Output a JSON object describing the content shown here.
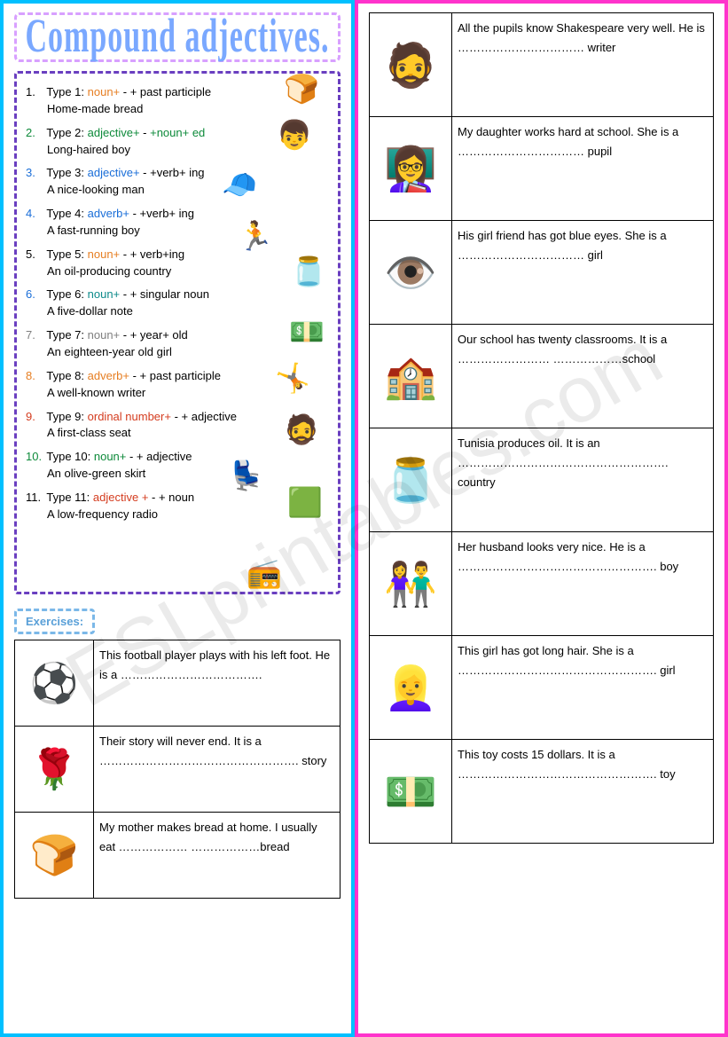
{
  "title": "Compound adjectives.",
  "watermark": "ESLprintables.com",
  "types": [
    {
      "num": "1.",
      "numClass": "num1",
      "label": "Type 1:",
      "formula": [
        [
          "noun+",
          "c-orange"
        ],
        [
          " - + past participle",
          ""
        ]
      ],
      "example": "Home-made bread"
    },
    {
      "num": "2.",
      "numClass": "num2",
      "label": "Type 2:",
      "formula": [
        [
          "adjective+",
          "c-green"
        ],
        [
          " - ",
          ""
        ],
        [
          "+noun+ ed",
          "c-green"
        ]
      ],
      "example": "Long-haired boy"
    },
    {
      "num": "3.",
      "numClass": "num3",
      "label": "Type 3:",
      "formula": [
        [
          "adjective+",
          "c-blue"
        ],
        [
          " - ",
          ""
        ],
        [
          "+verb+ ing",
          ""
        ]
      ],
      "example": "A nice-looking man"
    },
    {
      "num": "4.",
      "numClass": "num4",
      "label": "Type 4:",
      "formula": [
        [
          "adverb+",
          "c-blue"
        ],
        [
          " - ",
          ""
        ],
        [
          "+verb+ ing",
          ""
        ]
      ],
      "example": "A fast-running boy"
    },
    {
      "num": "5.",
      "numClass": "num5",
      "label": "Type 5:",
      "formula": [
        [
          "noun+",
          "c-orange"
        ],
        [
          " - + verb+ing",
          ""
        ]
      ],
      "example": "An oil-producing country"
    },
    {
      "num": "6.",
      "numClass": "num6",
      "label": "Type 6:",
      "formula": [
        [
          "noun+",
          "c-teal"
        ],
        [
          " - + singular noun",
          ""
        ]
      ],
      "example": "A five-dollar note"
    },
    {
      "num": "7.",
      "numClass": "num7",
      "label": "Type 7:",
      "formula": [
        [
          "noun+",
          "c-gray"
        ],
        [
          " - + year+ old",
          ""
        ]
      ],
      "example": "An eighteen-year old girl"
    },
    {
      "num": "8.",
      "numClass": "num8",
      "label": "Type 8:",
      "formula": [
        [
          "adverb+",
          "c-orange"
        ],
        [
          " - + past participle",
          ""
        ]
      ],
      "example": "A well-known writer"
    },
    {
      "num": "9.",
      "numClass": "num9",
      "label": "Type 9:",
      "formula": [
        [
          "ordinal number+",
          "c-red"
        ],
        [
          " - + adjective",
          ""
        ]
      ],
      "example": "A first-class seat"
    },
    {
      "num": "10.",
      "numClass": "num10",
      "label": "Type 10:",
      "formula": [
        [
          "noun+",
          "c-green"
        ],
        [
          " - + adjective",
          ""
        ]
      ],
      "example": "An olive-green skirt"
    },
    {
      "num": "11.",
      "numClass": "num11",
      "label": "Type 11:",
      "formula": [
        [
          "adjective +",
          "c-red"
        ],
        [
          " - + noun",
          ""
        ]
      ],
      "example": "A low-frequency radio"
    }
  ],
  "clipart": {
    "bread": "🍞",
    "boyface": "👦",
    "capman": "🧢",
    "runner": "🏃",
    "oil": "🫙",
    "dollar": "💵",
    "cheer": "🤸",
    "shakes": "🧔",
    "seat": "💺",
    "skirt": "🟩",
    "radio": "📻"
  },
  "exercisesLabel": "Exercises:",
  "leftExercises": [
    {
      "icon": "⚽",
      "text": "This football player plays with his left foot. He is a ………………………………."
    },
    {
      "icon": "🌹",
      "text": "Their story will never end. It is a ……………………………………………. story"
    },
    {
      "icon": "🍞",
      "text": "My mother makes bread at home. I usually eat ……………… ………………bread"
    }
  ],
  "rightExercises": [
    {
      "icon": "🧔",
      "text": "All the pupils know Shakespeare very well. He is …………………………… writer"
    },
    {
      "icon": "👩‍🏫",
      "text": "My daughter works hard at school. She is a …………………………… pupil"
    },
    {
      "icon": "👁️",
      "text": "His girl friend has got blue eyes. She is a …………………………… girl"
    },
    {
      "icon": "🏫",
      "text": "Our school has twenty classrooms. It is a …………………… ………………school"
    },
    {
      "icon": "🫙",
      "text": "Tunisia produces oil. It is an ………………………………………………. country"
    },
    {
      "icon": "👫",
      "text": "Her husband looks very nice. He is a ……………………………………………. boy"
    },
    {
      "icon": "👱‍♀️",
      "text": "This girl has got long hair. She is a ……………………………………………. girl"
    },
    {
      "icon": "💵",
      "text": "This toy costs 15 dollars. It is a ……………………………………………. toy"
    }
  ],
  "colors": {
    "leftBorder": "#00c0ff",
    "rightBorder": "#ff33cc",
    "titleBorder": "#d8a0ff",
    "titleText": "#7aa8ff",
    "typesBorder": "#6a3fc0",
    "exercisesBorder": "#7bb8e8",
    "exercisesText": "#5aa0d8"
  }
}
